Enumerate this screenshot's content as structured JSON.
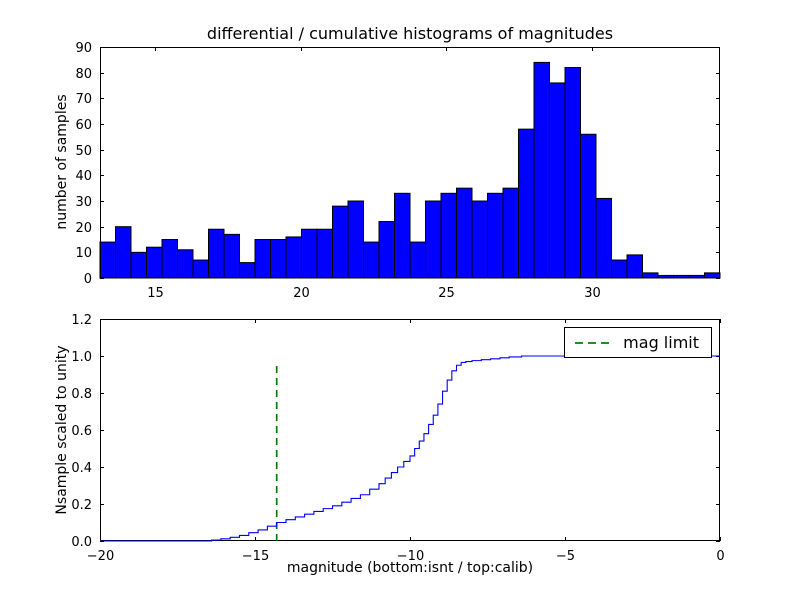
{
  "figure": {
    "title": "differential / cumulative histograms of magnitudes",
    "background": "#ffffff"
  },
  "legend": {
    "label": "mag limit",
    "line_color": "#008000",
    "line_style": "dashed"
  },
  "chart_data": [
    {
      "type": "bar",
      "role": "differential-histogram-of-calibrated-magnitudes",
      "title": "differential / cumulative histograms of magnitudes",
      "xlabel": "",
      "ylabel": "number of samples",
      "xlim": [
        13.1,
        34.4
      ],
      "ylim": [
        0,
        90
      ],
      "grid": false,
      "bin_start": 13.1,
      "bin_width": 0.5325,
      "values": [
        14,
        20,
        10,
        12,
        15,
        11,
        7,
        19,
        17,
        6,
        15,
        15,
        16,
        19,
        19,
        28,
        30,
        14,
        22,
        33,
        14,
        30,
        33,
        35,
        30,
        33,
        35,
        58,
        84,
        76,
        82,
        56,
        31,
        7,
        9,
        2,
        1,
        1,
        1,
        2
      ],
      "xticks": [
        15,
        20,
        25,
        30
      ],
      "xtick_labels": [
        "15",
        "20",
        "25",
        "30"
      ],
      "yticks": [
        0,
        10,
        20,
        30,
        40,
        50,
        60,
        70,
        80,
        90
      ],
      "ytick_labels": [
        "0",
        "10",
        "20",
        "30",
        "40",
        "50",
        "60",
        "70",
        "80",
        "90"
      ],
      "bar_color": "#0000ff",
      "bar_edge_color": "#000000"
    },
    {
      "type": "line",
      "role": "cumulative-histogram-of-instrumental-magnitudes",
      "xlabel": "magnitude (bottom:isnt / top:calib)",
      "ylabel": "Nsample scaled to unity",
      "xlim": [
        -20,
        0
      ],
      "ylim": [
        0,
        1.2
      ],
      "grid": false,
      "step": true,
      "line_color": "#0000ff",
      "points": [
        [
          -20,
          0.0
        ],
        [
          -16.6,
          0.0
        ],
        [
          -16.4,
          0.005
        ],
        [
          -16.1,
          0.012
        ],
        [
          -15.8,
          0.02
        ],
        [
          -15.5,
          0.03
        ],
        [
          -15.2,
          0.045
        ],
        [
          -14.9,
          0.06
        ],
        [
          -14.6,
          0.08
        ],
        [
          -14.3,
          0.1
        ],
        [
          -14.0,
          0.115
        ],
        [
          -13.7,
          0.13
        ],
        [
          -13.4,
          0.145
        ],
        [
          -13.1,
          0.16
        ],
        [
          -12.8,
          0.175
        ],
        [
          -12.5,
          0.19
        ],
        [
          -12.2,
          0.21
        ],
        [
          -11.9,
          0.23
        ],
        [
          -11.6,
          0.25
        ],
        [
          -11.3,
          0.28
        ],
        [
          -11.0,
          0.31
        ],
        [
          -10.8,
          0.34
        ],
        [
          -10.6,
          0.37
        ],
        [
          -10.4,
          0.4
        ],
        [
          -10.2,
          0.43
        ],
        [
          -10.0,
          0.46
        ],
        [
          -9.85,
          0.5
        ],
        [
          -9.7,
          0.54
        ],
        [
          -9.55,
          0.58
        ],
        [
          -9.4,
          0.63
        ],
        [
          -9.25,
          0.68
        ],
        [
          -9.1,
          0.74
        ],
        [
          -8.95,
          0.81
        ],
        [
          -8.8,
          0.87
        ],
        [
          -8.65,
          0.92
        ],
        [
          -8.5,
          0.95
        ],
        [
          -8.35,
          0.965
        ],
        [
          -8.2,
          0.97
        ],
        [
          -8.0,
          0.975
        ],
        [
          -7.7,
          0.98
        ],
        [
          -7.4,
          0.985
        ],
        [
          -7.1,
          0.99
        ],
        [
          -6.8,
          0.995
        ],
        [
          -6.4,
          1.0
        ],
        [
          0,
          1.0
        ]
      ],
      "xticks": [
        -20,
        -15,
        -10,
        -5,
        0
      ],
      "xtick_labels": [
        "−20",
        "−15",
        "−10",
        "−5",
        "0"
      ],
      "yticks": [
        0,
        0.2,
        0.4,
        0.6,
        0.8,
        1.0,
        1.2
      ],
      "ytick_labels": [
        "0.0",
        "0.2",
        "0.4",
        "0.6",
        "0.8",
        "1.0",
        "1.2"
      ],
      "mag_limit": {
        "x": -14.3,
        "y_bottom": 0.0,
        "y_top": 0.97,
        "color": "#008000",
        "label": "mag limit"
      },
      "legend_position": "upper right"
    }
  ]
}
